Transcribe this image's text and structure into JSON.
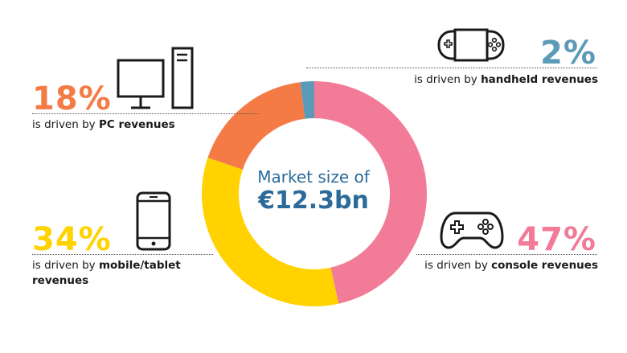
{
  "chart_data": {
    "type": "pie",
    "title": "Market size of",
    "total": "€12.3bn",
    "categories": [
      "console",
      "mobile/tablet",
      "PC",
      "handheld"
    ],
    "values": [
      47,
      34,
      18,
      2
    ],
    "colors": [
      "#f27b97",
      "#ffd200",
      "#f47b45",
      "#5b9ab8"
    ],
    "donut": true
  },
  "segments": {
    "pc": {
      "percent": "18%",
      "prefix": "is driven by",
      "label": "PC revenues",
      "color": "#f47b45",
      "icon": "desktop-pc-icon"
    },
    "handheld": {
      "percent": "2%",
      "prefix": "is driven by",
      "label": "handheld revenues",
      "color": "#5b9ab8",
      "icon": "handheld-console-icon"
    },
    "mobile": {
      "percent": "34%",
      "prefix": "is driven by",
      "label": "mobile/tablet",
      "label2": "revenues",
      "color": "#ffd200",
      "icon": "smartphone-icon"
    },
    "console": {
      "percent": "47%",
      "prefix": "is driven by",
      "label": "console revenues",
      "color": "#f27b97",
      "icon": "gamepad-icon"
    }
  }
}
